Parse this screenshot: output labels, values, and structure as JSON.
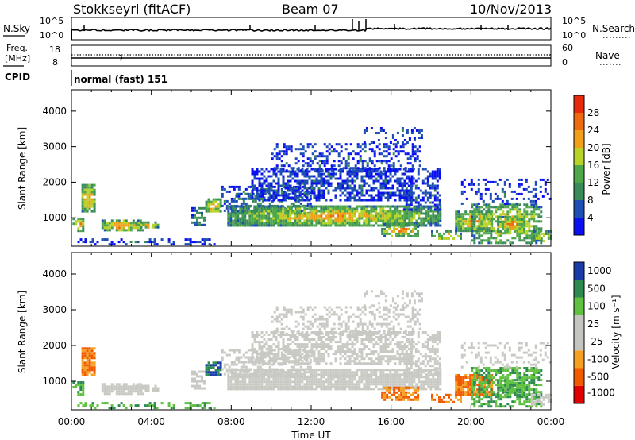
{
  "header": {
    "station": "Stokkseyri (fitACF)",
    "beam": "Beam 07",
    "date": "10/Nov/2013"
  },
  "noise_panel": {
    "left_label": "N.Sky",
    "right_label": "N.Search",
    "left_ticks": [
      "10^5",
      "10^0"
    ],
    "right_ticks": [
      "10^5",
      "10^0"
    ]
  },
  "freq_panel": {
    "left_label_1": "Freq.",
    "left_label_2": "[MHz]",
    "left_ticks": [
      "18",
      "8"
    ],
    "right_ticks": [
      "60",
      "0"
    ],
    "right_label": "Nave"
  },
  "cpid": {
    "label": "CPID",
    "mode": "normal (fast) 151"
  },
  "time_axis": {
    "label": "Time UT",
    "ticks": [
      "00:00",
      "04:00",
      "08:00",
      "12:00",
      "16:00",
      "20:00",
      "00:00"
    ]
  },
  "colors": {
    "power": [
      "#0a10f0",
      "#1e4fb4",
      "#3b8a5a",
      "#4ea84a",
      "#b8d226",
      "#f0a018",
      "#ee6a10",
      "#e82a0a"
    ],
    "velocity": [
      "#e00000",
      "#f25a00",
      "#f5a020",
      "#c4c4c0",
      "#c4c4c0",
      "#60c040",
      "#2e8a50",
      "#1a3ca8"
    ],
    "velocity_grey": "#c9c9c4"
  },
  "chart_data": [
    {
      "type": "heatmap",
      "name": "power",
      "ylabel": "Slant Range [km]",
      "yticks": [
        "1000",
        "2000",
        "3000",
        "4000"
      ],
      "ylim": [
        200,
        4600
      ],
      "xlim_hours": [
        0,
        24
      ],
      "colorbar": {
        "label": "Power [dB]",
        "ticks": [
          "4",
          "8",
          "12",
          "16",
          "20",
          "24",
          "28"
        ],
        "range": [
          0,
          32
        ]
      }
    },
    {
      "type": "heatmap",
      "name": "velocity",
      "ylabel": "Slant Range [km]",
      "yticks": [
        "1000",
        "2000",
        "3000",
        "4000"
      ],
      "ylim": [
        200,
        4600
      ],
      "xlim_hours": [
        0,
        24
      ],
      "colorbar": {
        "label": "Velocity [m s⁻¹]",
        "ticks": [
          "-1000",
          "-500",
          "-100",
          "-25",
          "25",
          "100",
          "500",
          "1000"
        ]
      }
    }
  ]
}
